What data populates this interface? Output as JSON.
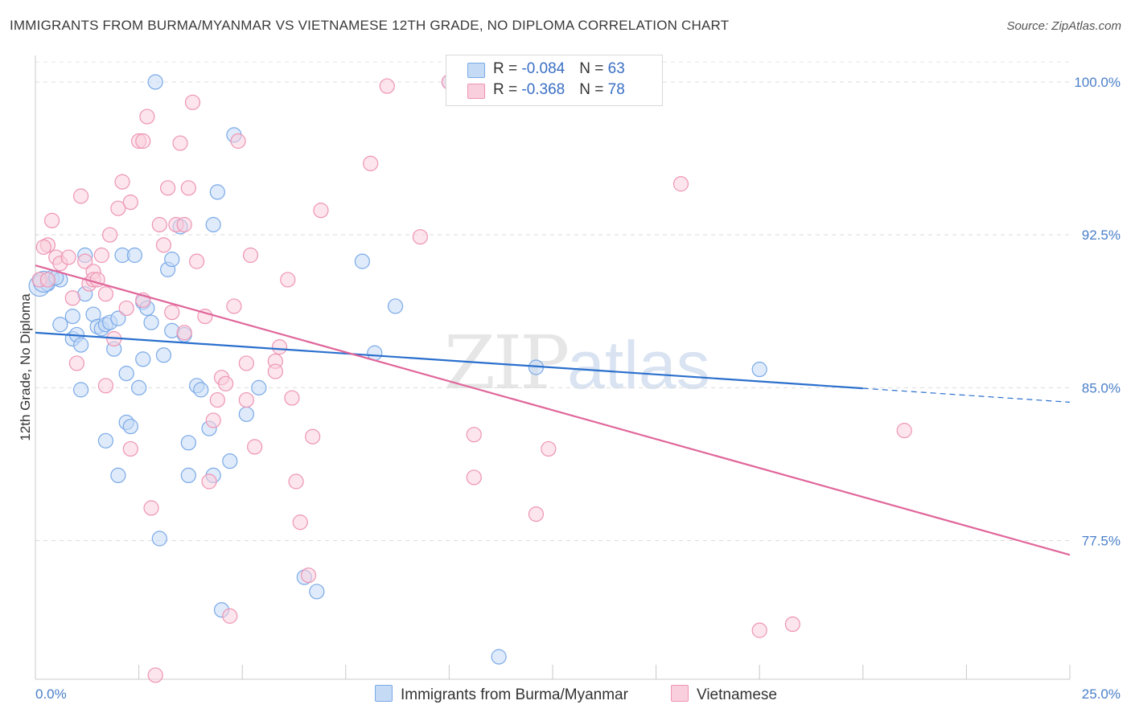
{
  "title": "IMMIGRANTS FROM BURMA/MYANMAR VS VIETNAMESE 12TH GRADE, NO DIPLOMA CORRELATION CHART",
  "source": "Source: ZipAtlas.com",
  "watermark": {
    "zip": "ZIP",
    "atlas": "atlas"
  },
  "colors": {
    "blue": "#7aa9e8",
    "blue_fill": "#c5daf5",
    "blue_line": "#2a6fcd",
    "pink": "#ee94b4",
    "pink_fill": "#f9cfdd",
    "pink_line": "#e0669a"
  },
  "legend": {
    "blue": {
      "r_label": "R = ",
      "r_value": "-0.084",
      "n_label": "N = ",
      "n_value": "63"
    },
    "pink": {
      "r_label": "R = ",
      "r_value": "-0.368",
      "n_label": "N = ",
      "n_value": "78"
    }
  },
  "chart_data": {
    "type": "scatter",
    "title": "IMMIGRANTS FROM BURMA/MYANMAR VS VIETNAMESE 12TH GRADE, NO DIPLOMA CORRELATION CHART",
    "xlabel": "",
    "ylabel": "12th Grade, No Diploma",
    "xlim": [
      0,
      25
    ],
    "ylim": [
      70.7,
      101.3
    ],
    "x_tick_labels": [
      "0.0%",
      "25.0%"
    ],
    "y_ticks": [
      77.5,
      85.0,
      92.5,
      100.0
    ],
    "y_tick_labels": [
      "77.5%",
      "85.0%",
      "92.5%",
      "100.0%"
    ],
    "grid": true,
    "legend_position": "top-center",
    "series": [
      {
        "name": "Immigrants from Burma/Myanmar",
        "color": "#7aa9e8",
        "points": [
          [
            0.1,
            90.0
          ],
          [
            0.3,
            90.1
          ],
          [
            0.4,
            90.4
          ],
          [
            0.6,
            90.3
          ],
          [
            0.6,
            88.1
          ],
          [
            0.9,
            88.5
          ],
          [
            0.9,
            87.4
          ],
          [
            1.0,
            87.6
          ],
          [
            1.1,
            87.1
          ],
          [
            1.1,
            84.9
          ],
          [
            1.2,
            91.5
          ],
          [
            1.2,
            89.6
          ],
          [
            1.4,
            88.6
          ],
          [
            1.5,
            88.0
          ],
          [
            1.6,
            87.9
          ],
          [
            1.7,
            88.1
          ],
          [
            1.8,
            88.2
          ],
          [
            1.7,
            82.4
          ],
          [
            2.0,
            80.7
          ],
          [
            2.1,
            91.5
          ],
          [
            2.2,
            83.3
          ],
          [
            2.2,
            85.7
          ],
          [
            2.3,
            83.1
          ],
          [
            2.4,
            91.5
          ],
          [
            2.5,
            85.0
          ],
          [
            2.6,
            89.2
          ],
          [
            2.6,
            86.4
          ],
          [
            2.7,
            88.9
          ],
          [
            2.8,
            88.2
          ],
          [
            2.9,
            100.0
          ],
          [
            3.0,
            77.6
          ],
          [
            3.1,
            86.6
          ],
          [
            3.2,
            90.8
          ],
          [
            3.3,
            87.8
          ],
          [
            3.3,
            91.3
          ],
          [
            3.5,
            92.9
          ],
          [
            3.7,
            82.3
          ],
          [
            3.7,
            80.7
          ],
          [
            3.9,
            85.1
          ],
          [
            4.0,
            84.9
          ],
          [
            4.2,
            83.0
          ],
          [
            4.3,
            93.0
          ],
          [
            4.3,
            80.7
          ],
          [
            4.4,
            94.6
          ],
          [
            4.5,
            74.1
          ],
          [
            4.7,
            81.4
          ],
          [
            4.8,
            97.4
          ],
          [
            5.1,
            83.7
          ],
          [
            5.4,
            85.0
          ],
          [
            6.5,
            75.7
          ],
          [
            6.8,
            75.0
          ],
          [
            7.9,
            91.2
          ],
          [
            8.2,
            86.7
          ],
          [
            8.7,
            89.0
          ],
          [
            10.0,
            100.0
          ],
          [
            11.2,
            71.8
          ],
          [
            12.1,
            86.0
          ],
          [
            17.5,
            85.9
          ],
          [
            0.2,
            90.2
          ],
          [
            1.9,
            86.9
          ],
          [
            0.5,
            90.4
          ],
          [
            3.6,
            87.6
          ],
          [
            2.0,
            88.4
          ]
        ]
      },
      {
        "name": "Vietnamese",
        "color": "#ee94b4",
        "points": [
          [
            0.1,
            90.3
          ],
          [
            0.3,
            90.3
          ],
          [
            0.3,
            92.0
          ],
          [
            0.4,
            93.2
          ],
          [
            0.5,
            91.4
          ],
          [
            0.6,
            91.1
          ],
          [
            0.8,
            91.4
          ],
          [
            0.9,
            89.4
          ],
          [
            1.0,
            86.2
          ],
          [
            1.1,
            94.4
          ],
          [
            1.2,
            91.2
          ],
          [
            1.3,
            90.1
          ],
          [
            1.4,
            90.7
          ],
          [
            1.4,
            90.3
          ],
          [
            1.5,
            90.3
          ],
          [
            1.6,
            91.5
          ],
          [
            1.7,
            89.6
          ],
          [
            1.7,
            85.1
          ],
          [
            1.8,
            92.5
          ],
          [
            1.9,
            87.4
          ],
          [
            2.0,
            93.8
          ],
          [
            2.1,
            95.1
          ],
          [
            2.2,
            88.9
          ],
          [
            2.3,
            94.1
          ],
          [
            2.3,
            82.0
          ],
          [
            2.5,
            97.1
          ],
          [
            2.6,
            97.1
          ],
          [
            2.7,
            98.3
          ],
          [
            2.8,
            79.1
          ],
          [
            2.9,
            70.9
          ],
          [
            3.0,
            93.0
          ],
          [
            3.1,
            92.0
          ],
          [
            3.2,
            94.8
          ],
          [
            3.3,
            88.7
          ],
          [
            3.4,
            93.0
          ],
          [
            3.5,
            97.0
          ],
          [
            3.6,
            87.7
          ],
          [
            3.6,
            93.0
          ],
          [
            3.7,
            94.8
          ],
          [
            3.8,
            99.0
          ],
          [
            3.9,
            91.2
          ],
          [
            4.1,
            88.5
          ],
          [
            4.2,
            80.4
          ],
          [
            4.3,
            83.4
          ],
          [
            4.4,
            84.4
          ],
          [
            4.5,
            85.5
          ],
          [
            4.6,
            85.2
          ],
          [
            4.7,
            73.8
          ],
          [
            4.8,
            89.0
          ],
          [
            4.9,
            97.1
          ],
          [
            5.1,
            86.2
          ],
          [
            5.1,
            84.4
          ],
          [
            5.2,
            91.5
          ],
          [
            5.3,
            82.1
          ],
          [
            5.8,
            86.3
          ],
          [
            5.8,
            85.8
          ],
          [
            5.9,
            87.0
          ],
          [
            6.1,
            90.3
          ],
          [
            6.2,
            84.5
          ],
          [
            6.3,
            80.4
          ],
          [
            6.4,
            78.4
          ],
          [
            6.6,
            75.8
          ],
          [
            6.7,
            82.6
          ],
          [
            6.9,
            93.7
          ],
          [
            8.1,
            96.0
          ],
          [
            8.5,
            99.8
          ],
          [
            9.3,
            92.4
          ],
          [
            10.0,
            100.0
          ],
          [
            10.6,
            80.6
          ],
          [
            10.6,
            82.7
          ],
          [
            12.1,
            78.8
          ],
          [
            12.4,
            82.0
          ],
          [
            15.6,
            95.0
          ],
          [
            21.0,
            82.9
          ],
          [
            17.5,
            73.1
          ],
          [
            18.3,
            73.4
          ],
          [
            0.2,
            91.9
          ],
          [
            2.6,
            89.3
          ]
        ]
      }
    ],
    "trend_lines": [
      {
        "series": "Immigrants from Burma/Myanmar",
        "color": "#2a6fcd",
        "solid": [
          [
            0.0,
            87.7
          ],
          [
            20.0,
            84.97
          ]
        ],
        "dashed": [
          [
            20.0,
            84.97
          ],
          [
            25.0,
            84.29
          ]
        ]
      },
      {
        "series": "Vietnamese",
        "color": "#e0669a",
        "solid": [
          [
            0.0,
            91.0
          ],
          [
            25.0,
            76.8
          ]
        ]
      }
    ]
  }
}
